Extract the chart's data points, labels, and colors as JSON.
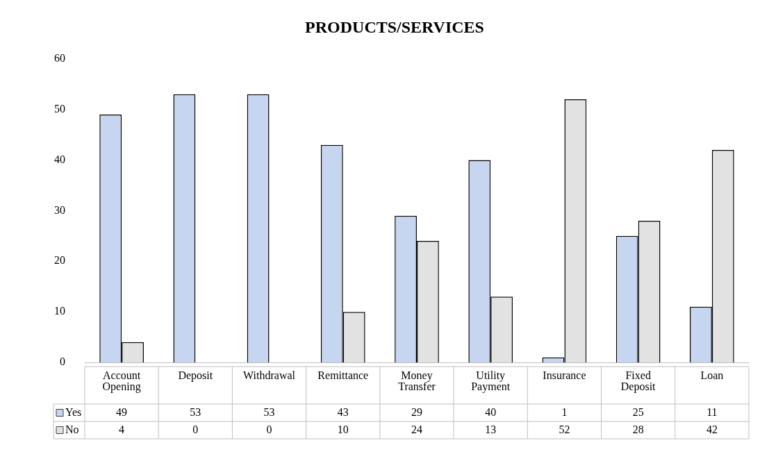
{
  "chart_data": {
    "type": "bar",
    "title": "PRODUCTS/SERVICES",
    "categories": [
      "Account Opening",
      "Deposit",
      "Withdrawal",
      "Remittance",
      "Money Transfer",
      "Utility Payment",
      "Insurance",
      "Fixed Deposit",
      "Loan"
    ],
    "series": [
      {
        "name": "Yes",
        "color": "#c6d6f0",
        "values": [
          49,
          53,
          53,
          43,
          29,
          40,
          1,
          25,
          11
        ]
      },
      {
        "name": "No",
        "color": "#e2e2e2",
        "values": [
          4,
          0,
          0,
          10,
          24,
          13,
          52,
          28,
          42
        ]
      }
    ],
    "ylim": [
      0,
      60
    ],
    "yticks": [
      0,
      10,
      20,
      30,
      40,
      50,
      60
    ],
    "grid": false,
    "legend": "bottom",
    "data_labels": true
  }
}
